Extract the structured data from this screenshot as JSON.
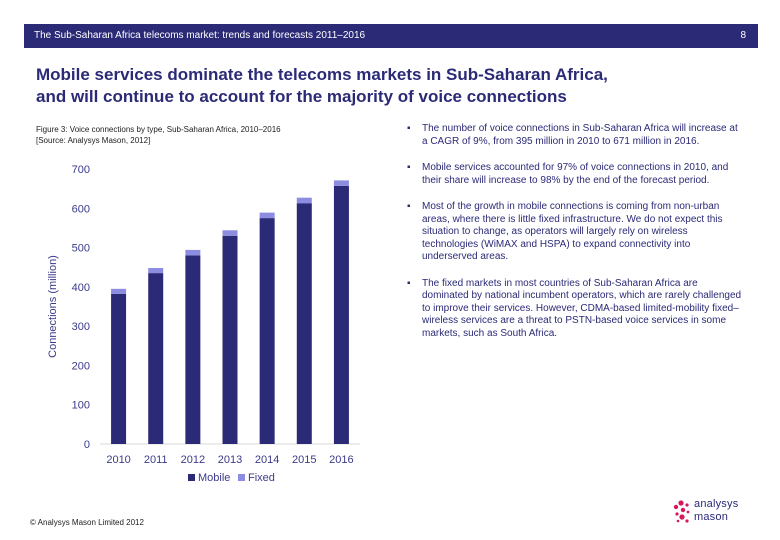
{
  "header": {
    "title": "The Sub-Saharan Africa telecoms market: trends and forecasts 2011–2016",
    "page_number": "8"
  },
  "headline": [
    "Mobile services dominate the telecoms markets in Sub-Saharan Africa,",
    "and will continue to account for the majority of voice connections"
  ],
  "figure_caption": [
    "Figure 3: Voice connections by type, Sub-Saharan Africa, 2010–2016",
    "[Source: Analysys Mason, 2012]"
  ],
  "bullets": [
    "The number of voice connections in Sub-Saharan Africa will increase at a CAGR of 9%, from 395 million in 2010 to 671 million in 2016.",
    "Mobile services accounted for 97% of voice connections in 2010, and their share will increase to 98% by the end of the forecast period.",
    "Most of the growth in mobile connections is coming from non-urban areas, where there is little fixed infrastructure. We do not expect this situation to change, as operators will largely rely on wireless technologies (WiMAX and HSPA) to expand connectivity into underserved areas.",
    "The fixed markets in most countries of Sub-Saharan Africa are dominated by national incumbent operators, which are rarely challenged to improve their services. However, CDMA-based limited-mobility fixed–wireless services are a threat to PSTN-based voice services in some markets, such as South Africa."
  ],
  "footer": {
    "copyright": "© Analysys Mason Limited 2012"
  },
  "logo": {
    "line1": "analysys",
    "line2": "mason",
    "dot_color": "#d6195e"
  },
  "colors": {
    "header_bar": "#2b2a77",
    "mobile": "#2b2a77",
    "fixed": "#8c8ce0",
    "axis_text": "#3b3a8a"
  },
  "chart_data": {
    "type": "bar",
    "stacked": true,
    "categories": [
      "2010",
      "2011",
      "2012",
      "2013",
      "2014",
      "2015",
      "2016"
    ],
    "series": [
      {
        "name": "Mobile",
        "values": [
          382,
          435,
          480,
          530,
          575,
          613,
          657
        ]
      },
      {
        "name": "Fixed",
        "values": [
          13,
          13,
          14,
          14,
          14,
          14,
          14
        ]
      }
    ],
    "ylabel": "Connections (million)",
    "ylim": [
      0,
      700
    ],
    "yticks": [
      0,
      100,
      200,
      300,
      400,
      500,
      600,
      700
    ],
    "grid": false,
    "legend": "bottom"
  }
}
